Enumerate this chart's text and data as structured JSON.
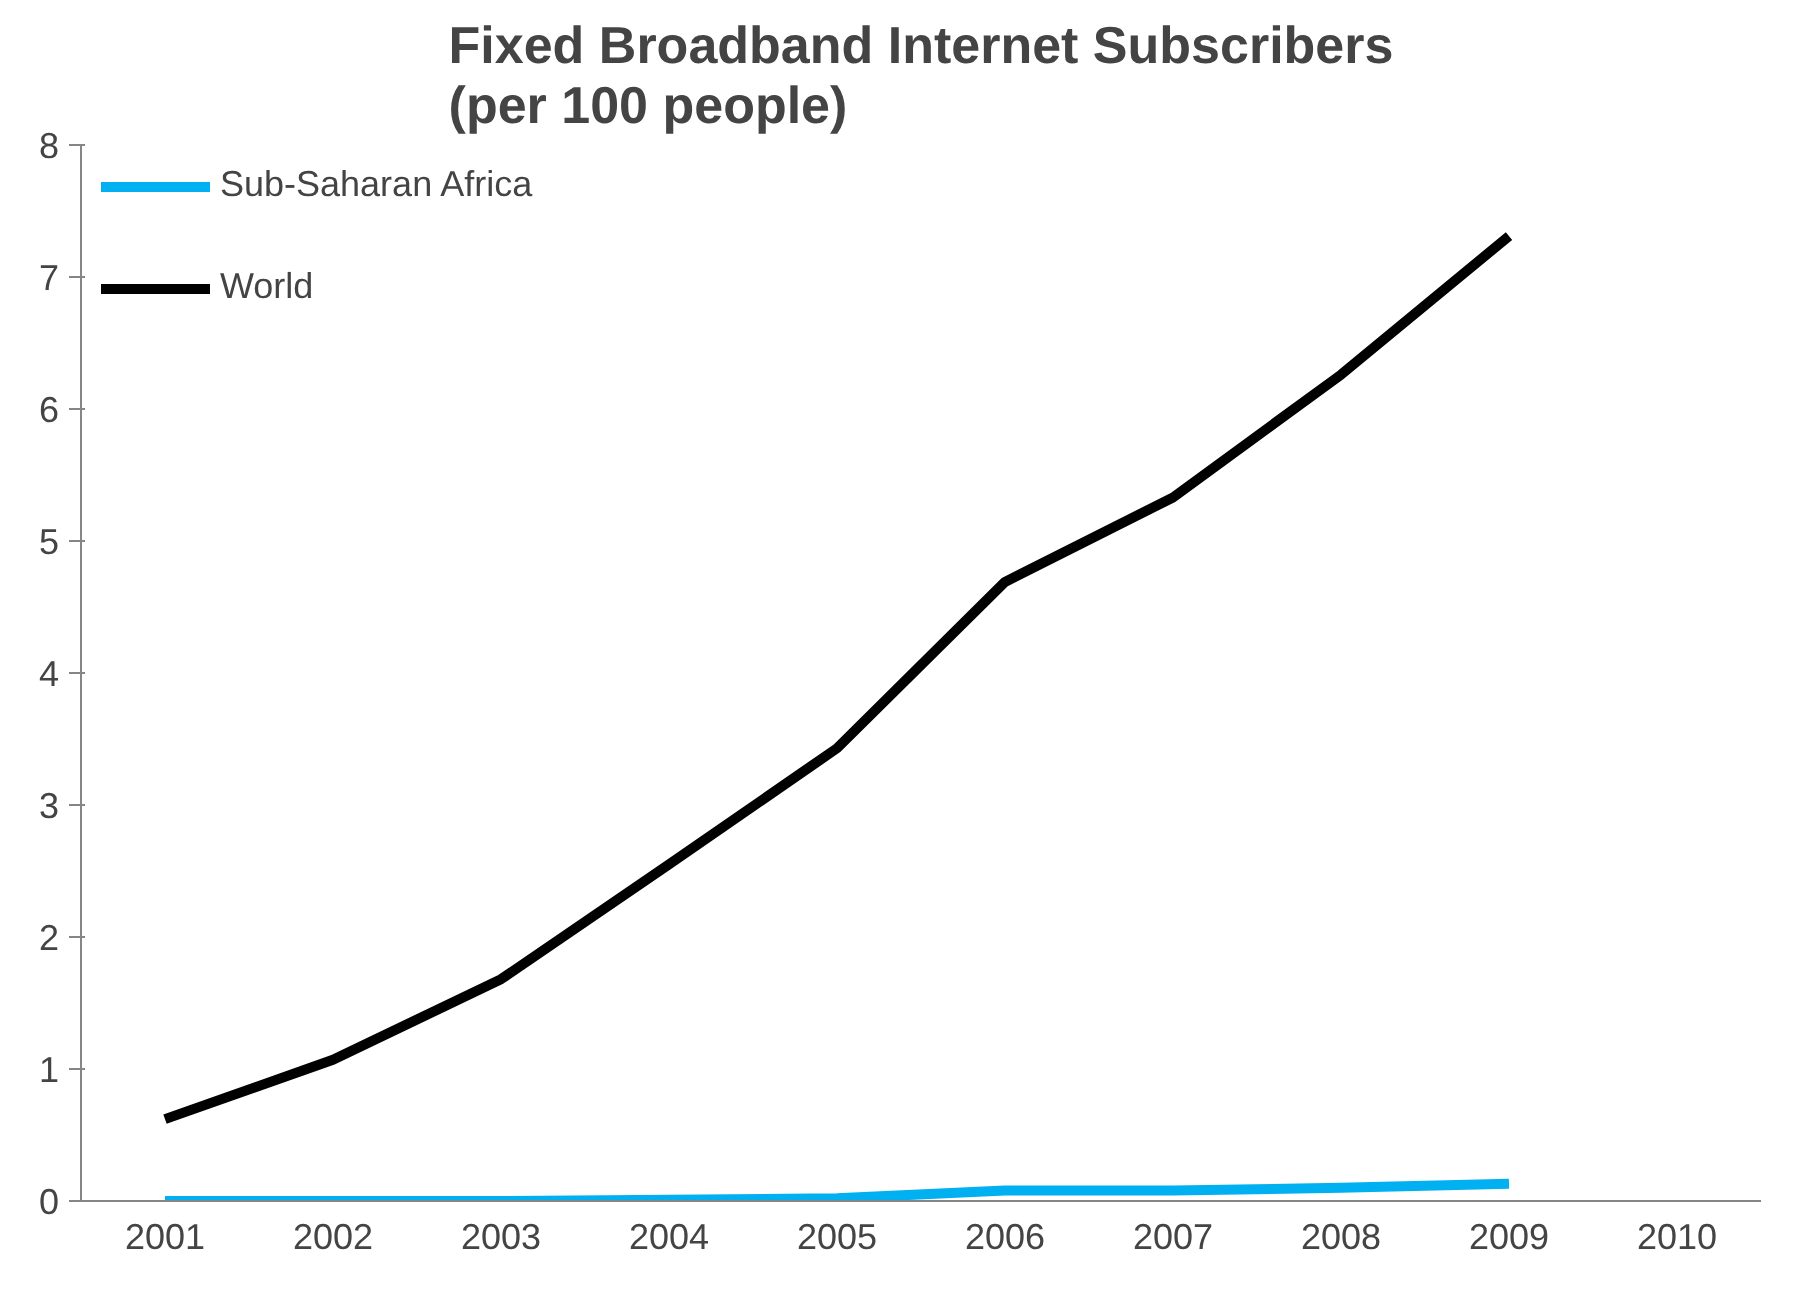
{
  "chart_data": {
    "type": "line",
    "title": "Fixed Broadband Internet Subscribers\n(per 100 people)",
    "categories": [
      "2001",
      "2002",
      "2003",
      "2004",
      "2005",
      "2006",
      "2007",
      "2008",
      "2009",
      "2010"
    ],
    "series": [
      {
        "name": "Sub-Saharan Africa",
        "color": "#00b0f0",
        "values": [
          0.0,
          0.0,
          0.0,
          0.01,
          0.02,
          0.08,
          0.08,
          0.1,
          0.13,
          null
        ]
      },
      {
        "name": "World",
        "color": "#000000",
        "values": [
          0.62,
          1.07,
          1.68,
          2.55,
          3.43,
          4.69,
          5.33,
          6.26,
          7.31,
          null
        ]
      }
    ],
    "ylim": [
      0,
      8
    ],
    "yticks": [
      0,
      1,
      2,
      3,
      4,
      5,
      6,
      7,
      8
    ],
    "grid": false,
    "legend": "top left",
    "marker": "none",
    "line_style": "solid"
  }
}
